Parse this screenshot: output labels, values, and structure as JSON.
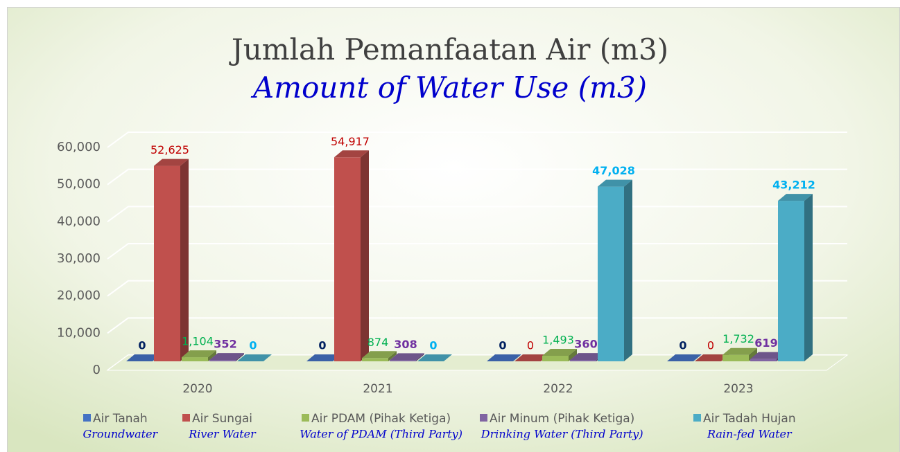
{
  "chart_data": {
    "type": "bar3d",
    "title": "Jumlah Pemanfaatan Air (m3)",
    "subtitle": "Amount of Water Use (m3)",
    "categories": [
      "2020",
      "2021",
      "2022",
      "2023"
    ],
    "series": [
      {
        "name": "Air Tanah",
        "translation": "Groundwater",
        "color": "#4472c4",
        "label_color": "#002060",
        "values": [
          0,
          0,
          0,
          0
        ]
      },
      {
        "name": "Air Sungai",
        "translation": "River Water",
        "color": "#c0504d",
        "label_color": "#c00000",
        "values": [
          52625,
          54917,
          0,
          0
        ],
        "value_labels": [
          "52,625",
          "54,917",
          "0",
          "0"
        ]
      },
      {
        "name": "Air PDAM (Pihak Ketiga)",
        "translation": "Water of PDAM (Third Party)",
        "color": "#9bbb59",
        "label_color": "#00b050",
        "values": [
          1104,
          874,
          1493,
          1732
        ],
        "value_labels": [
          "1,104",
          "874",
          "1,493",
          "1,732"
        ]
      },
      {
        "name": "Air Minum (Pihak Ketiga)",
        "translation": "Drinking Water (Third Party)",
        "color": "#8064a2",
        "label_color": "#7030a0",
        "values": [
          352,
          308,
          360,
          619
        ]
      },
      {
        "name": "Air Tadah Hujan",
        "translation": "Rain-fed Water",
        "color": "#4bacc6",
        "label_color": "#00b0f0",
        "values": [
          0,
          0,
          47028,
          43212
        ],
        "value_labels": [
          "0",
          "0",
          "47,028",
          "43,212"
        ]
      }
    ],
    "ylim": [
      0,
      60000
    ],
    "yticks": [
      0,
      {
        "value": 10000,
        "label": "10,000"
      },
      {
        "value": 20000,
        "label": "20,000"
      },
      {
        "value": 30000,
        "label": "30,000"
      },
      {
        "value": 40000,
        "label": "40,000"
      },
      {
        "value": 50000,
        "label": "50,000"
      },
      {
        "value": 60000,
        "label": "60,000"
      }
    ],
    "grid": true
  }
}
